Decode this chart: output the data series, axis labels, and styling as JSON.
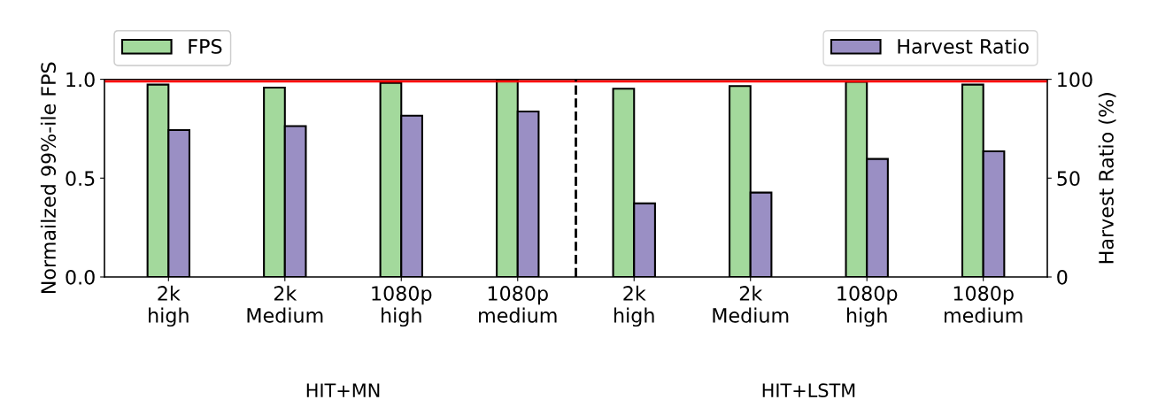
{
  "chart_data": {
    "type": "bar",
    "ylabel": "Normailzed 99%-ile FPS",
    "y2label": "Harvest Ratio (%)",
    "categories": [
      "2k\nhigh",
      "2k\nMedium",
      "1080p\nhigh",
      "1080p\nmedium",
      "2k\nhigh",
      "2k\nMedium",
      "1080p\nhigh",
      "1080p\nmedium"
    ],
    "series": [
      {
        "name": "FPS",
        "color": "#a3d99c",
        "values": [
          0.973,
          0.958,
          0.982,
          1.0,
          0.952,
          0.966,
          0.987,
          0.973
        ]
      },
      {
        "name": "Harvest Ratio",
        "color": "#9a8fc4",
        "axis": "y2",
        "values": [
          74.3,
          76.3,
          81.6,
          83.7,
          37.2,
          42.7,
          59.7,
          63.6
        ]
      }
    ],
    "ylim": [
      0,
      1.0
    ],
    "yticks": [
      {
        "value": 0,
        "label": "0.0"
      },
      0.5,
      {
        "value": 1,
        "label": "1.0"
      }
    ],
    "y2lim": [
      0,
      100
    ],
    "y2ticks": [
      0,
      50,
      100
    ],
    "ref_lines": [
      {
        "axis": "y",
        "value": 0.99,
        "color": "#ff0000",
        "line_style": "solid"
      }
    ],
    "annotations": [
      "HIT+MN",
      "HIT+LSTM"
    ],
    "legend": "top",
    "grid": false
  }
}
